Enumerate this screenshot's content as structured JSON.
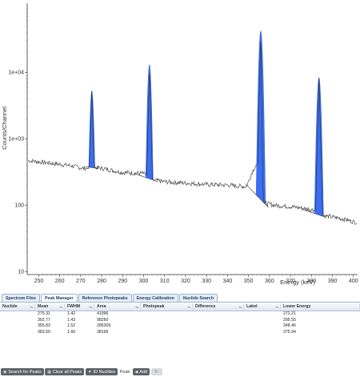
{
  "chart_data": {
    "type": "line",
    "title": "",
    "xlabel": "Energy (keV)",
    "ylabel": "Counts/Channel",
    "xlim": [
      244.5,
      402
    ],
    "ylim": [
      9,
      110000
    ],
    "yscale": "log",
    "x_ticks": [
      250,
      260,
      270,
      280,
      290,
      300,
      310,
      320,
      330,
      340,
      350,
      360,
      370,
      380,
      390,
      400
    ],
    "y_ticks": [
      {
        "value": 10,
        "label": "10"
      },
      {
        "value": 100,
        "label": "100"
      },
      {
        "value": 1000,
        "label": "1e+03"
      },
      {
        "value": 10000,
        "label": "1e+04"
      }
    ],
    "grid": false,
    "spectrum_points": [
      [
        245,
        470
      ],
      [
        255,
        430
      ],
      [
        265,
        395
      ],
      [
        271,
        360
      ],
      [
        274,
        355
      ],
      [
        275.3,
        5200
      ],
      [
        276.6,
        370
      ],
      [
        280,
        360
      ],
      [
        290,
        310
      ],
      [
        300,
        300
      ],
      [
        301.5,
        280
      ],
      [
        302.8,
        13000
      ],
      [
        304.2,
        240
      ],
      [
        310,
        225
      ],
      [
        320,
        215
      ],
      [
        330,
        205
      ],
      [
        340,
        200
      ],
      [
        349,
        190
      ],
      [
        352,
        330
      ],
      [
        354.5,
        430
      ],
      [
        355.8,
        42000
      ],
      [
        357,
        110
      ],
      [
        362,
        100
      ],
      [
        370,
        95
      ],
      [
        378,
        88
      ],
      [
        382,
        84
      ],
      [
        383.6,
        8300
      ],
      [
        385.3,
        70
      ],
      [
        395,
        62
      ],
      [
        401.5,
        55
      ]
    ],
    "peaks": [
      {
        "mean": 275.31,
        "fwhm": 1.42,
        "left": 272.21,
        "right": 278.4,
        "peak": 5200,
        "base_left": 380,
        "base_right": 355
      },
      {
        "mean": 302.77,
        "fwhm": 1.43,
        "left": 295.55,
        "right": 306.8,
        "peak": 13000,
        "base_left": 300,
        "base_right": 225
      },
      {
        "mean": 355.83,
        "fwhm": 1.52,
        "left": 348.46,
        "right": 359.5,
        "peak": 42000,
        "base_left": 210,
        "base_right": 92
      },
      {
        "mean": 383.59,
        "fwhm": 1.6,
        "left": 375.94,
        "right": 386.5,
        "peak": 8300,
        "base_left": 86,
        "base_right": 66
      }
    ],
    "line_color": "#333333",
    "peak_fill_color": "#3b6ef0",
    "continuum_color": "#555555"
  },
  "tabs": [
    "Spectrum Files",
    "Peak Manager",
    "Reference Photopeaks",
    "Energy Calibration",
    "Nuclide Search"
  ],
  "active_tab": "Peak Manager",
  "table": {
    "columns": [
      "Nuclide",
      "Mean",
      "FWHM",
      "Area",
      "Photopeak",
      "Difference",
      "Label",
      "Lower Energy"
    ],
    "sort_indicator": "≒",
    "rows": [
      [
        "",
        "275.31",
        "1.42",
        "41996",
        "",
        "",
        "",
        "272.21"
      ],
      [
        "",
        "302.77",
        "1.43",
        "98260",
        "",
        "",
        "",
        "295.55"
      ],
      [
        "",
        "355.83",
        "1.52",
        "285309",
        "",
        "",
        "",
        "348.46"
      ],
      [
        "",
        "383.59",
        "1.60",
        "38166",
        "",
        "",
        "",
        "375.94"
      ]
    ]
  },
  "toolbar": {
    "search_label": "Search for Peaks",
    "clear_label": "Clear all Peaks",
    "id_label": "ID Nuclides",
    "peak_label": "Peak:",
    "add_label": "Add",
    "search_icon": "search-icon",
    "clear_icon": "clear-icon",
    "id_icon": "id-icon",
    "add_icon": "add-icon",
    "remove_icon": "remove-icon"
  }
}
